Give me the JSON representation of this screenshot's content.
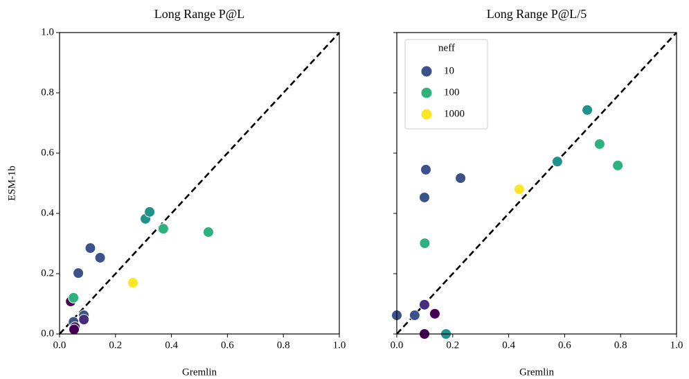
{
  "chart_data": [
    {
      "type": "scatter",
      "title": "Long Range P@L",
      "xlabel": "Gremlin",
      "ylabel": "ESM-1b",
      "xlim": [
        0,
        1
      ],
      "ylim": [
        0,
        1
      ],
      "xticks": [
        {
          "value": 0,
          "label": "0.0"
        },
        0.2,
        0.4,
        0.6,
        0.8,
        {
          "value": 1,
          "label": "1.0"
        }
      ],
      "yticks": [
        {
          "value": 0,
          "label": "0.0"
        },
        0.2,
        0.4,
        0.6,
        0.8,
        {
          "value": 1,
          "label": "1.0"
        }
      ],
      "show_ytick_labels": true,
      "diagonal": true,
      "x": [
        0.04,
        0.05,
        0.067,
        0.11,
        0.145,
        0.05,
        0.055,
        0.052,
        0.087,
        0.087,
        0.262,
        0.307,
        0.322,
        0.371,
        0.532
      ],
      "values": [
        0.108,
        0.12,
        0.202,
        0.285,
        0.253,
        0.04,
        0.023,
        0.015,
        0.062,
        0.048,
        0.17,
        0.382,
        0.405,
        0.349,
        0.338
      ],
      "colors": [
        "#440154",
        "#2db27d",
        "#3b528b",
        "#3b528b",
        "#3b528b",
        "#3b528b",
        "#481f70",
        "#440154",
        "#3b528b",
        "#472d7b",
        "#fde725",
        "#21918c",
        "#21918c",
        "#2db27d",
        "#2db27d"
      ]
    },
    {
      "type": "scatter",
      "title": "Long Range P@L/5",
      "xlabel": "Gremlin",
      "xlim": [
        0,
        1
      ],
      "ylim": [
        0,
        1
      ],
      "xticks": [
        {
          "value": 0,
          "label": "0.0"
        },
        0.2,
        0.4,
        0.6,
        0.8,
        {
          "value": 1,
          "label": "1.0"
        }
      ],
      "yticks": [
        0,
        0.2,
        0.4,
        0.6,
        0.8,
        1
      ],
      "show_ytick_labels": false,
      "diagonal": true,
      "x": [
        0,
        0.064,
        0.099,
        0.136,
        0.099,
        0.176,
        0.1,
        0.099,
        0.104,
        0.228,
        0.438,
        0.574,
        0.681,
        0.725,
        0.79
      ],
      "values": [
        0.062,
        0.062,
        0.097,
        0.067,
        0,
        0,
        0.301,
        0.453,
        0.545,
        0.517,
        0.48,
        0.572,
        0.743,
        0.63,
        0.559
      ],
      "colors": [
        "#3b528b",
        "#3b528b",
        "#472d7b",
        "#440154",
        "#440154",
        "#21918c",
        "#2db27d",
        "#3b528b",
        "#3b528b",
        "#3b528b",
        "#fde725",
        "#21918c",
        "#21918c",
        "#2db27d",
        "#2db27d"
      ],
      "legend": {
        "title": "neff",
        "loc": "upper left",
        "entries": [
          {
            "name": "10",
            "color": "#3b528b"
          },
          {
            "name": "100",
            "color": "#2db27d"
          },
          {
            "name": "1000",
            "color": "#fde725"
          }
        ]
      }
    }
  ]
}
